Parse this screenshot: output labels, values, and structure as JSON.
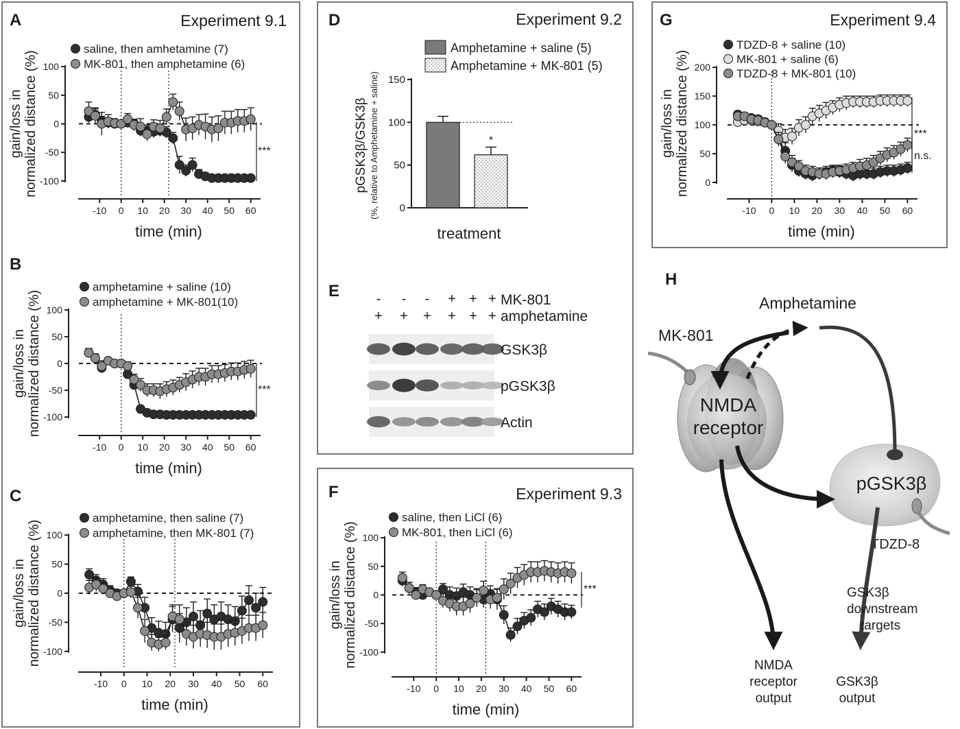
{
  "figure": {
    "panel_letters": [
      "A",
      "B",
      "C",
      "D",
      "E",
      "F",
      "G",
      "H"
    ],
    "experiment_titles": [
      "Experiment 9.1",
      "Experiment 9.2",
      "Experiment 9.3",
      "Experiment 9.4"
    ],
    "significance": {
      "A": "***",
      "B": "***",
      "D": "*",
      "F": "***",
      "G_top": "***",
      "G_bottom": "n.s."
    },
    "colors": {
      "dark": "#2e2e2e",
      "medium": "#8c8c8c",
      "light": "#dcdcdc",
      "bar_dark": "#7a7a7a",
      "box": "#777777",
      "axis": "#1e1e1e"
    }
  },
  "chart_data": [
    {
      "panel": "A",
      "type": "line",
      "title": "Experiment 9.1",
      "xlabel": "time (min)",
      "ylabel": [
        "gain/loss in",
        "normalized distance (%)"
      ],
      "xlim": [
        -18,
        62
      ],
      "ylim": [
        -105,
        105
      ],
      "xticks": [
        -10,
        0,
        10,
        20,
        30,
        40,
        50,
        60
      ],
      "yticks": [
        -100,
        -50,
        0,
        50,
        100
      ],
      "ytick_labels": [
        "-100",
        "-50",
        "0",
        "50",
        "100"
      ],
      "vlines": [
        0,
        22
      ],
      "reference_line": 0,
      "significance": "***",
      "x": [
        -15,
        -12,
        -9,
        -6,
        -3,
        0,
        3,
        6,
        9,
        12,
        15,
        18,
        21,
        24,
        27,
        30,
        33,
        36,
        39,
        42,
        45,
        48,
        51,
        54,
        57,
        60
      ],
      "series": [
        {
          "name": "saline, then amhetamine (7)",
          "color": "#2e2e2e",
          "values": [
            12,
            16,
            5,
            2,
            0,
            0,
            2,
            0,
            -12,
            -12,
            -14,
            -12,
            -15,
            -25,
            -72,
            -82,
            -72,
            -88,
            -92,
            -95,
            -95,
            -95,
            -95,
            -95,
            -95,
            -95
          ],
          "errors": [
            10,
            10,
            8,
            8,
            6,
            4,
            8,
            8,
            10,
            10,
            10,
            10,
            10,
            10,
            15,
            10,
            12,
            8,
            6,
            4,
            4,
            4,
            4,
            4,
            4,
            4
          ]
        },
        {
          "name": "MK-801, then amphetamine (6)",
          "color": "#8c8c8c",
          "values": [
            22,
            14,
            0,
            4,
            1,
            0,
            8,
            -2,
            -5,
            -18,
            -5,
            -8,
            12,
            38,
            22,
            -10,
            -8,
            -2,
            -5,
            -10,
            -8,
            2,
            2,
            5,
            5,
            8
          ],
          "errors": [
            16,
            14,
            20,
            12,
            8,
            4,
            10,
            10,
            14,
            12,
            12,
            14,
            14,
            14,
            16,
            20,
            20,
            18,
            22,
            22,
            22,
            20,
            20,
            20,
            20,
            20
          ]
        }
      ]
    },
    {
      "panel": "B",
      "type": "line",
      "title": "",
      "xlabel": "time (min)",
      "ylabel": [
        "gain/loss in",
        "normalized distance (%)"
      ],
      "xlim": [
        -18,
        62
      ],
      "ylim": [
        -105,
        105
      ],
      "xticks": [
        -10,
        0,
        10,
        20,
        30,
        40,
        50,
        60
      ],
      "yticks": [
        -100,
        -50,
        0,
        50,
        100
      ],
      "ytick_labels": [
        "-100",
        "-50",
        "0",
        "50",
        "100"
      ],
      "vlines": [
        0
      ],
      "reference_line": 0,
      "significance": "***",
      "x": [
        -15,
        -12,
        -9,
        -6,
        -3,
        0,
        3,
        6,
        9,
        12,
        15,
        18,
        21,
        24,
        27,
        30,
        33,
        36,
        39,
        42,
        45,
        48,
        51,
        54,
        57,
        60
      ],
      "series": [
        {
          "name": "amphetamine + saline (10)",
          "color": "#2e2e2e",
          "values": [
            20,
            10,
            -8,
            5,
            0,
            0,
            -20,
            -40,
            -85,
            -92,
            -95,
            -95,
            -96,
            -96,
            -96,
            -96,
            -96,
            -96,
            -96,
            -96,
            -96,
            -96,
            -96,
            -96,
            -96,
            -96
          ],
          "errors": [
            8,
            8,
            10,
            6,
            4,
            4,
            8,
            8,
            6,
            4,
            4,
            4,
            4,
            4,
            4,
            4,
            4,
            4,
            4,
            4,
            4,
            4,
            4,
            4,
            4,
            4
          ]
        },
        {
          "name": "amphetamine + MK-801(10)",
          "color": "#8c8c8c",
          "values": [
            20,
            10,
            -5,
            5,
            0,
            0,
            -5,
            -30,
            -40,
            -50,
            -50,
            -52,
            -48,
            -45,
            -40,
            -35,
            -30,
            -25,
            -25,
            -20,
            -20,
            -18,
            -15,
            -15,
            -12,
            -10
          ],
          "errors": [
            8,
            8,
            10,
            6,
            4,
            4,
            8,
            10,
            12,
            12,
            12,
            14,
            14,
            14,
            14,
            16,
            16,
            16,
            16,
            16,
            16,
            16,
            16,
            16,
            16,
            16
          ]
        }
      ]
    },
    {
      "panel": "C",
      "type": "line",
      "title": "",
      "xlabel": "time (min)",
      "ylabel": [
        "gain/loss in",
        "normalized distance (%)"
      ],
      "xlim": [
        -18,
        62
      ],
      "ylim": [
        -105,
        105
      ],
      "xticks": [
        -10,
        0,
        10,
        20,
        30,
        40,
        50,
        60
      ],
      "yticks": [
        -100,
        -50,
        0,
        50,
        100
      ],
      "ytick_labels": [
        "-100",
        "-50",
        "0",
        "50",
        "100"
      ],
      "vlines": [
        0,
        22
      ],
      "reference_line": 0,
      "significance": "",
      "x": [
        -15,
        -12,
        -9,
        -6,
        -3,
        0,
        3,
        6,
        9,
        12,
        15,
        18,
        21,
        24,
        27,
        30,
        33,
        36,
        39,
        42,
        45,
        48,
        51,
        54,
        57,
        60
      ],
      "series": [
        {
          "name": "amphetamine, then saline  (7)",
          "color": "#2e2e2e",
          "values": [
            32,
            22,
            15,
            5,
            0,
            0,
            20,
            3,
            -25,
            -60,
            -68,
            -70,
            -45,
            -60,
            -50,
            -40,
            -55,
            -35,
            -45,
            -40,
            -45,
            -48,
            -30,
            -12,
            -25,
            -15
          ],
          "errors": [
            10,
            10,
            10,
            8,
            6,
            4,
            8,
            12,
            18,
            18,
            20,
            20,
            22,
            25,
            25,
            25,
            25,
            25,
            25,
            25,
            25,
            25,
            25,
            25,
            25,
            25
          ]
        },
        {
          "name": "amphetamine, then MK-801 (7)",
          "color": "#8c8c8c",
          "values": [
            10,
            15,
            8,
            0,
            -5,
            0,
            2,
            -25,
            -65,
            -85,
            -88,
            -85,
            -40,
            -45,
            -70,
            -75,
            -70,
            -72,
            -75,
            -75,
            -70,
            -68,
            -65,
            -60,
            -60,
            -55
          ],
          "errors": [
            12,
            12,
            10,
            8,
            6,
            4,
            10,
            18,
            20,
            14,
            12,
            12,
            20,
            25,
            20,
            20,
            22,
            22,
            22,
            22,
            22,
            22,
            22,
            22,
            22,
            22
          ]
        }
      ]
    },
    {
      "panel": "D",
      "type": "bar",
      "title": "Experiment 9.2",
      "xlabel": "treatment",
      "ylabel": "pGSK3β/GSK3β",
      "ylabel_sub": "(%, relative to Amphetamine + saline)",
      "ylim": [
        0,
        150
      ],
      "yticks": [
        0,
        50,
        100,
        150
      ],
      "ytick_labels": [
        "0",
        "50",
        "100",
        "150"
      ],
      "reference_line": 100,
      "significance": "*",
      "categories": [
        "Amphetamine + saline (5)",
        "Amphetamine + MK-801 (5)"
      ],
      "values": [
        100,
        62
      ],
      "errors": [
        7,
        9
      ],
      "legend": [
        "Amphetamine + saline (5)",
        "Amphetamine + MK-801 (5)"
      ]
    },
    {
      "panel": "F",
      "type": "line",
      "title": "Experiment 9.3",
      "xlabel": "time (min)",
      "ylabel": [
        "gain/loss in",
        "normalized distance (%)"
      ],
      "xlim": [
        -18,
        62
      ],
      "ylim": [
        -105,
        105
      ],
      "xticks": [
        -10,
        0,
        10,
        20,
        30,
        40,
        50,
        60
      ],
      "yticks": [
        -100,
        -50,
        0,
        50,
        100
      ],
      "ytick_labels": [
        "-100",
        "-50",
        "0",
        "50",
        "100"
      ],
      "vlines": [
        0,
        22
      ],
      "reference_line": 0,
      "significance": "***",
      "x": [
        -15,
        -12,
        -9,
        -6,
        -3,
        0,
        3,
        6,
        9,
        12,
        15,
        18,
        21,
        24,
        27,
        30,
        33,
        36,
        39,
        42,
        45,
        48,
        51,
        54,
        57,
        60
      ],
      "series": [
        {
          "name": "saline, then LiCl (6)",
          "color": "#2e2e2e",
          "values": [
            25,
            12,
            5,
            0,
            5,
            0,
            10,
            0,
            -2,
            5,
            0,
            -5,
            -8,
            2,
            -8,
            -35,
            -70,
            -55,
            -45,
            -40,
            -25,
            -30,
            -20,
            -25,
            -30,
            -30
          ],
          "errors": [
            10,
            10,
            8,
            8,
            6,
            4,
            10,
            14,
            14,
            14,
            14,
            14,
            14,
            14,
            18,
            16,
            12,
            14,
            14,
            14,
            14,
            14,
            14,
            14,
            14,
            12
          ]
        },
        {
          "name": "MK-801, then LiCl (6)",
          "color": "#8c8c8c",
          "values": [
            30,
            12,
            0,
            10,
            5,
            0,
            -10,
            -15,
            -20,
            -20,
            -15,
            -5,
            8,
            -8,
            -5,
            10,
            20,
            30,
            35,
            40,
            40,
            42,
            40,
            38,
            40,
            38
          ],
          "errors": [
            10,
            10,
            8,
            8,
            6,
            4,
            12,
            14,
            16,
            16,
            16,
            16,
            16,
            16,
            16,
            18,
            18,
            18,
            18,
            18,
            18,
            18,
            18,
            18,
            18,
            18
          ]
        }
      ]
    },
    {
      "panel": "G",
      "type": "line",
      "title": "Experiment 9.4",
      "xlabel": "time (min)",
      "ylabel": [
        "gain/loss in",
        "normalized distance (%)"
      ],
      "xlim": [
        -18,
        62
      ],
      "ylim": [
        0,
        205
      ],
      "xticks": [
        -10,
        0,
        10,
        20,
        30,
        40,
        50,
        60
      ],
      "yticks": [
        0,
        50,
        100,
        150,
        200
      ],
      "ytick_labels": [
        "0",
        "50",
        "100",
        "150",
        "200"
      ],
      "vlines": [
        0
      ],
      "reference_line": 100,
      "significance": "***",
      "significance_bottom": "n.s.",
      "x": [
        -15,
        -12,
        -9,
        -6,
        -3,
        0,
        3,
        6,
        9,
        12,
        15,
        18,
        21,
        24,
        27,
        30,
        33,
        36,
        39,
        42,
        45,
        48,
        51,
        54,
        57,
        60
      ],
      "series": [
        {
          "name": "TDZD-8 + saline (10)",
          "color": "#2e2e2e",
          "values": [
            118,
            115,
            112,
            110,
            105,
            100,
            75,
            55,
            30,
            20,
            15,
            12,
            15,
            18,
            20,
            18,
            15,
            12,
            15,
            15,
            15,
            18,
            20,
            20,
            22,
            25
          ],
          "errors": [
            6,
            6,
            6,
            6,
            6,
            4,
            12,
            14,
            12,
            10,
            10,
            10,
            10,
            10,
            10,
            10,
            10,
            10,
            10,
            10,
            10,
            10,
            10,
            10,
            10,
            10
          ]
        },
        {
          "name": "MK-801 + saline (6)",
          "color": "#dcdcdc",
          "values": [
            105,
            108,
            108,
            106,
            104,
            100,
            90,
            78,
            80,
            95,
            100,
            115,
            120,
            125,
            130,
            135,
            138,
            140,
            140,
            140,
            140,
            142,
            142,
            142,
            142,
            142
          ],
          "errors": [
            6,
            6,
            6,
            6,
            6,
            4,
            12,
            14,
            14,
            14,
            14,
            14,
            14,
            14,
            12,
            12,
            12,
            10,
            10,
            10,
            10,
            10,
            10,
            10,
            10,
            10
          ]
        },
        {
          "name": "TDZD-8 + MK-801 (10)",
          "color": "#8c8c8c",
          "values": [
            115,
            115,
            110,
            108,
            104,
            100,
            75,
            45,
            35,
            28,
            20,
            18,
            15,
            15,
            18,
            20,
            22,
            25,
            28,
            30,
            35,
            42,
            48,
            52,
            58,
            65
          ],
          "errors": [
            6,
            6,
            6,
            6,
            6,
            4,
            12,
            12,
            12,
            10,
            10,
            10,
            10,
            10,
            10,
            10,
            10,
            10,
            12,
            12,
            12,
            12,
            12,
            12,
            12,
            12
          ]
        }
      ]
    }
  ],
  "blot": {
    "panel": "E",
    "row_labels": [
      "MK-801",
      "amphetamine"
    ],
    "mk801_signs": [
      "-",
      "-",
      "-",
      "+",
      "+",
      "+"
    ],
    "amph_signs": [
      "+",
      "+",
      "+",
      "+",
      "+",
      "+"
    ],
    "band_labels": [
      "GSK3β",
      "pGSK3β",
      "Actin"
    ],
    "band_intensity": {
      "GSK3β": [
        0.75,
        0.9,
        0.75,
        0.7,
        0.72,
        0.7
      ],
      "pGSK3β": [
        0.5,
        0.95,
        0.8,
        0.3,
        0.3,
        0.25
      ],
      "Actin": [
        0.7,
        0.45,
        0.5,
        0.45,
        0.55,
        0.4
      ]
    }
  },
  "diagram": {
    "panel": "H",
    "labels": {
      "amphetamine": "Amphetamine",
      "mk801": "MK-801",
      "nmda_line1": "NMDA",
      "nmda_line2": "receptor",
      "pgsk": "pGSK3β",
      "tdzd": "TDZD-8",
      "gsk_downstream": [
        "GSK3β",
        "downstream",
        "targets"
      ],
      "nmda_output": [
        "NMDA",
        "receptor",
        "output"
      ],
      "gsk_output": [
        "GSK3β",
        "output"
      ]
    }
  }
}
